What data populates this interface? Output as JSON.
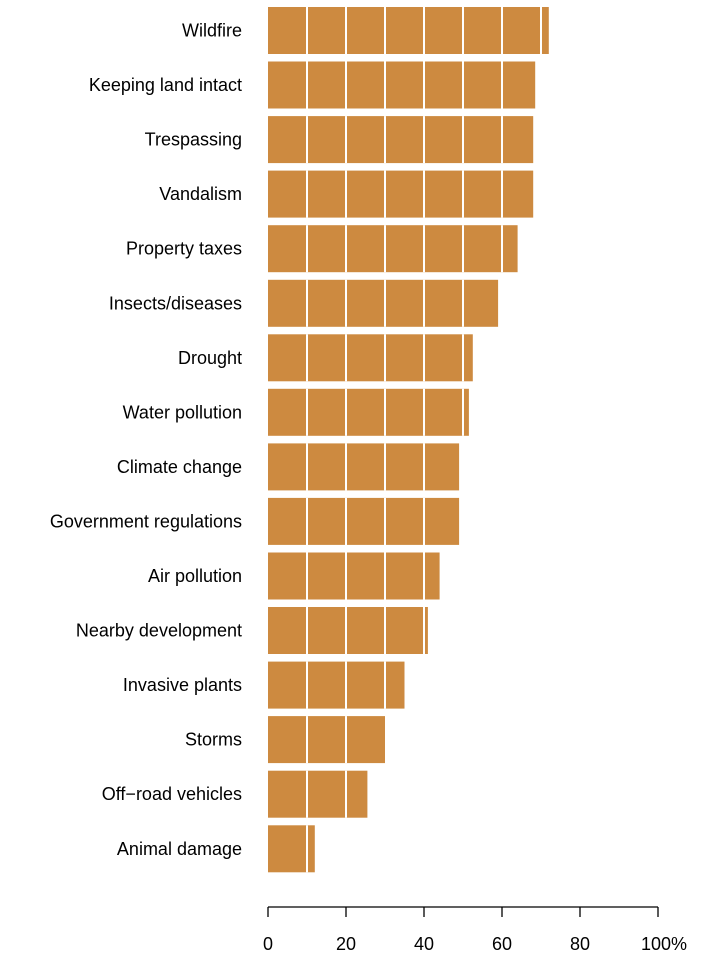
{
  "chart_data": {
    "type": "bar",
    "orientation": "horizontal",
    "categories": [
      "Wildfire",
      "Keeping land intact",
      "Trespassing",
      "Vandalism",
      "Property taxes",
      "Insects/diseases",
      "Drought",
      "Water pollution",
      "Climate change",
      "Government regulations",
      "Air pollution",
      "Nearby development",
      "Invasive plants",
      "Storms",
      "Off−road vehicles",
      "Animal damage"
    ],
    "values": [
      72,
      68.5,
      68,
      68,
      64,
      59,
      52.5,
      51.5,
      49,
      49,
      44,
      41,
      35,
      30,
      25.5,
      12
    ],
    "xlim": [
      0,
      100
    ],
    "xticks": [
      0,
      20,
      40,
      60,
      80,
      100
    ],
    "xtick_labels": [
      "0",
      "20",
      "40",
      "60",
      "80",
      "100%"
    ],
    "gridlines": "white vertical lines every 10 over the bars",
    "bar_color": "#cd8a40",
    "grid_color": "#ffffff",
    "title": "",
    "xlabel": "",
    "ylabel": ""
  }
}
